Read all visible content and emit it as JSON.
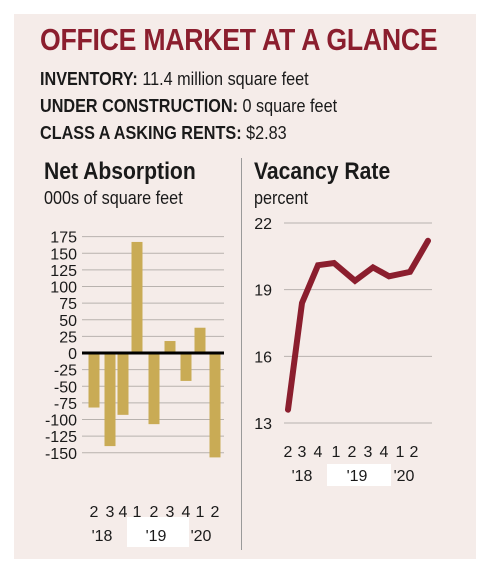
{
  "header": {
    "title": "OFFICE MARKET AT A GLANCE",
    "stats": [
      {
        "label": "INVENTORY:",
        "value": "11.4 million square feet"
      },
      {
        "label": "UNDER CONSTRUCTION:",
        "value": "0 square feet"
      },
      {
        "label": "CLASS A ASKING RENTS:",
        "value": "$2.83"
      }
    ]
  },
  "colors": {
    "accent": "#8b1e2e",
    "bar": "#c9ab55",
    "line": "#8b1e2e",
    "panel": "#f5ece9",
    "highlight_band": "#ffffff"
  },
  "chart_data": [
    {
      "type": "bar",
      "title": "Net Absorption",
      "subtitle": "000s of square feet",
      "categories": [
        "2",
        "3",
        "4",
        "1",
        "2",
        "3",
        "4",
        "1",
        "2"
      ],
      "year_labels": [
        "'18",
        "'19",
        "'20"
      ],
      "values": [
        -82,
        -140,
        -93,
        167,
        -107,
        18,
        -42,
        38,
        -157
      ],
      "ylim": [
        -160,
        180
      ],
      "yticks": [
        175,
        150,
        125,
        100,
        75,
        50,
        25,
        0,
        -25,
        -50,
        -75,
        -100,
        -125,
        -150
      ],
      "grid": true
    },
    {
      "type": "line",
      "title": "Vacancy Rate",
      "subtitle": "percent",
      "categories": [
        "2",
        "3",
        "4",
        "1",
        "2",
        "3",
        "4",
        "1",
        "2"
      ],
      "year_labels": [
        "'18",
        "'19",
        "'20"
      ],
      "values": [
        13.6,
        18.4,
        20.1,
        20.2,
        19.4,
        20.0,
        19.6,
        19.8,
        21.2
      ],
      "ylim": [
        13,
        22
      ],
      "yticks": [
        22,
        19,
        16,
        13
      ],
      "grid": true
    }
  ]
}
